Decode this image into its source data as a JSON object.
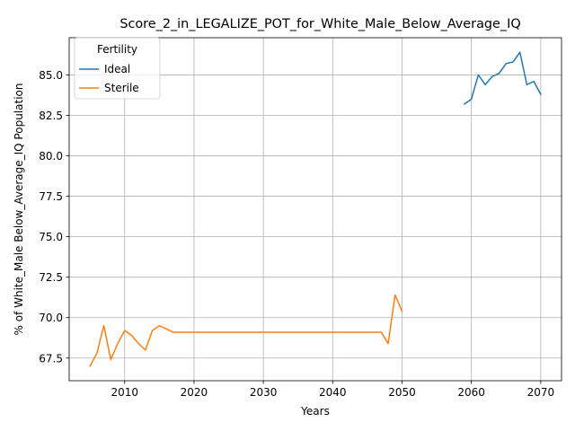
{
  "chart_data": {
    "type": "line",
    "title": "Score_2_in_LEGALIZE_POT_for_White_Male_Below_Average_IQ",
    "xlabel": "Years",
    "ylabel": "% of White_Male Below_Average_IQ Population",
    "xlim": [
      2002,
      2073
    ],
    "ylim": [
      66.1,
      87.3
    ],
    "xticks": [
      2010,
      2020,
      2030,
      2040,
      2050,
      2060,
      2070
    ],
    "yticks": [
      67.5,
      70.0,
      72.5,
      75.0,
      77.5,
      80.0,
      82.5,
      85.0
    ],
    "xtick_labels": [
      "2010",
      "2020",
      "2030",
      "2040",
      "2050",
      "2060",
      "2070"
    ],
    "ytick_labels": [
      "67.5",
      "70.0",
      "72.5",
      "75.0",
      "77.5",
      "80.0",
      "82.5",
      "85.0"
    ],
    "grid": true,
    "legend": {
      "title": "Fertility",
      "placement": "top-left"
    },
    "series": [
      {
        "name": "Ideal",
        "color": "#1f77b4",
        "x": [
          2059,
          2060,
          2061,
          2062,
          2063,
          2064,
          2065,
          2066,
          2067,
          2068,
          2069,
          2070
        ],
        "y": [
          83.2,
          83.5,
          85.0,
          84.4,
          84.9,
          85.1,
          85.7,
          85.8,
          86.4,
          84.4,
          84.6,
          83.8
        ]
      },
      {
        "name": "Sterile",
        "color": "#ff7f0e",
        "x": [
          2005,
          2006,
          2007,
          2008,
          2009,
          2010,
          2011,
          2012,
          2013,
          2014,
          2015,
          2016,
          2017,
          2018,
          2019,
          2020,
          2021,
          2022,
          2023,
          2024,
          2025,
          2026,
          2027,
          2028,
          2029,
          2030,
          2031,
          2032,
          2033,
          2034,
          2035,
          2036,
          2037,
          2038,
          2039,
          2040,
          2041,
          2042,
          2043,
          2044,
          2045,
          2046,
          2047,
          2048,
          2049,
          2050
        ],
        "y": [
          67.0,
          67.8,
          69.5,
          67.4,
          68.4,
          69.2,
          68.9,
          68.4,
          68.0,
          69.2,
          69.5,
          69.3,
          69.1,
          69.1,
          69.1,
          69.1,
          69.1,
          69.1,
          69.1,
          69.1,
          69.1,
          69.1,
          69.1,
          69.1,
          69.1,
          69.1,
          69.1,
          69.1,
          69.1,
          69.1,
          69.1,
          69.1,
          69.1,
          69.1,
          69.1,
          69.1,
          69.1,
          69.1,
          69.1,
          69.1,
          69.1,
          69.1,
          69.1,
          68.4,
          71.4,
          70.4
        ]
      }
    ]
  }
}
